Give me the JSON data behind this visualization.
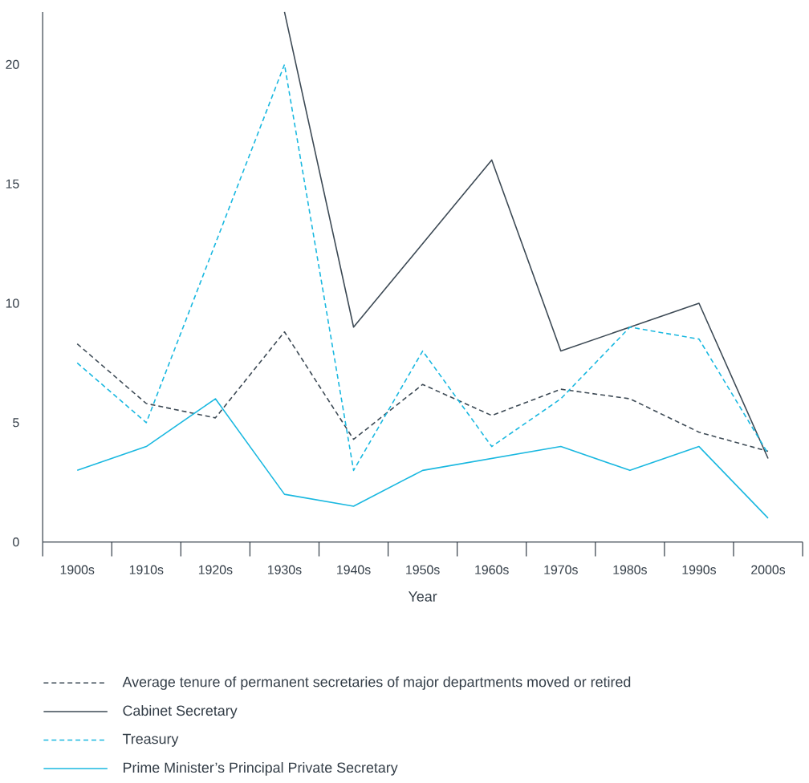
{
  "chart_data": {
    "type": "line",
    "xlabel": "Year",
    "categories": [
      "1900s",
      "1910s",
      "1920s",
      "1930s",
      "1940s",
      "1950s",
      "1960s",
      "1970s",
      "1980s",
      "1990s",
      "2000s"
    ],
    "ylim": [
      0,
      22.2
    ],
    "yticks": [
      0,
      5,
      10,
      15,
      20
    ],
    "grid": false,
    "legend": "bottom",
    "marker": "none",
    "series": [
      {
        "name": "Average tenure of permanent secretaries of major departments moved or retired",
        "color": "#3d4a55",
        "line_style": "dashed",
        "values": [
          8.3,
          5.8,
          5.2,
          8.8,
          4.3,
          6.6,
          5.3,
          6.4,
          6.0,
          4.6,
          3.8
        ]
      },
      {
        "name": "Cabinet Secretary",
        "color": "#3d4a55",
        "line_style": "solid",
        "values": [
          null,
          null,
          null,
          22.2,
          9,
          12.5,
          16,
          8,
          9,
          10,
          3.5
        ]
      },
      {
        "name": "Treasury",
        "color": "#1ab8e0",
        "line_style": "dashed",
        "values": [
          7.5,
          5,
          12.5,
          20,
          3,
          8,
          4,
          6,
          9,
          8.5,
          3.7
        ]
      },
      {
        "name": "Prime Minister’s Principal Private Secretary",
        "color": "#1ab8e0",
        "line_style": "solid",
        "values": [
          3,
          4,
          6,
          2,
          1.5,
          3,
          3.5,
          4,
          3,
          4,
          1
        ]
      }
    ]
  }
}
